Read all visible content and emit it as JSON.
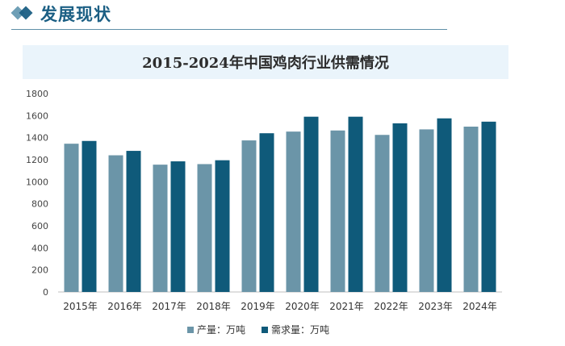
{
  "header": {
    "title": "发展现状"
  },
  "colors": {
    "production": "#6b95a8",
    "demand": "#0f5a7a"
  },
  "chart_data": {
    "type": "bar",
    "title": "2015-2024年中国鸡肉行业供需情况",
    "xlabel": "",
    "ylabel": "",
    "categories": [
      "2015年",
      "2016年",
      "2017年",
      "2018年",
      "2019年",
      "2020年",
      "2021年",
      "2022年",
      "2023年",
      "2024年"
    ],
    "series": [
      {
        "name": "产量：万吨",
        "values": [
          1345,
          1240,
          1155,
          1160,
          1375,
          1455,
          1465,
          1425,
          1475,
          1500
        ]
      },
      {
        "name": "需求量：万吨",
        "values": [
          1370,
          1280,
          1185,
          1195,
          1440,
          1590,
          1590,
          1530,
          1575,
          1545
        ]
      }
    ],
    "ylim": [
      0,
      1800
    ],
    "yticks": [
      0,
      200,
      400,
      600,
      800,
      1000,
      1200,
      1400,
      1600,
      1800
    ],
    "grid": false,
    "legend": "bottom"
  }
}
